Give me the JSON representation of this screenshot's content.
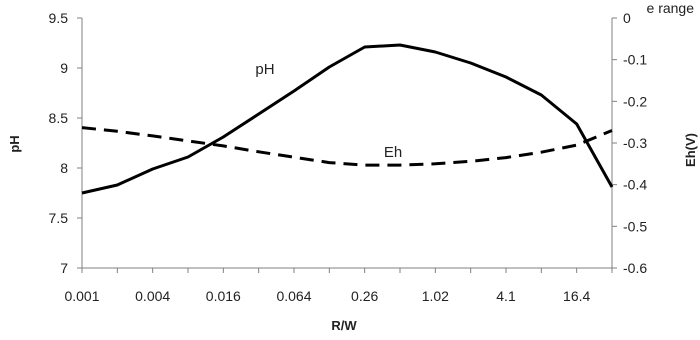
{
  "corner_text": "e range",
  "chart_data": {
    "type": "line",
    "x": [
      "0.001",
      "0.002",
      "0.004",
      "0.008",
      "0.016",
      "0.032",
      "0.064",
      "0.13",
      "0.26",
      "0.51",
      "1.02",
      "2.05",
      "4.1",
      "8.2",
      "16.4",
      "32.8"
    ],
    "xtick_labels": [
      "0.001",
      "0.004",
      "0.016",
      "0.064",
      "0.26",
      "1.02",
      "4.1",
      "16.4"
    ],
    "xlabel": "R/W",
    "ylabel_left": "pH",
    "ylabel_right": "Eh(V)",
    "ylim_left": [
      7,
      9.5
    ],
    "ylim_right": [
      -0.6,
      0
    ],
    "yticks_left": [
      "7",
      "7.5",
      "8",
      "8.5",
      "9",
      "9.5"
    ],
    "yticks_right": [
      "-0.6",
      "-0.5",
      "-0.4",
      "-0.3",
      "-0.2",
      "-0.1",
      "0"
    ],
    "grid": false,
    "legend": "none",
    "series": [
      {
        "name": "pH",
        "axis": "left",
        "style": "solid",
        "values": [
          7.75,
          7.83,
          7.99,
          8.11,
          8.31,
          8.54,
          8.77,
          9.01,
          9.21,
          9.23,
          9.16,
          9.05,
          8.91,
          8.73,
          8.44,
          7.81
        ]
      },
      {
        "name": "Eh",
        "axis": "right",
        "style": "dashed",
        "values": [
          -0.263,
          -0.272,
          -0.283,
          -0.295,
          -0.307,
          -0.321,
          -0.334,
          -0.347,
          -0.353,
          -0.353,
          -0.35,
          -0.344,
          -0.335,
          -0.322,
          -0.305,
          -0.27
        ]
      }
    ],
    "colors": {
      "line": "#000000",
      "axis": "#808080",
      "text": "#222222"
    }
  }
}
